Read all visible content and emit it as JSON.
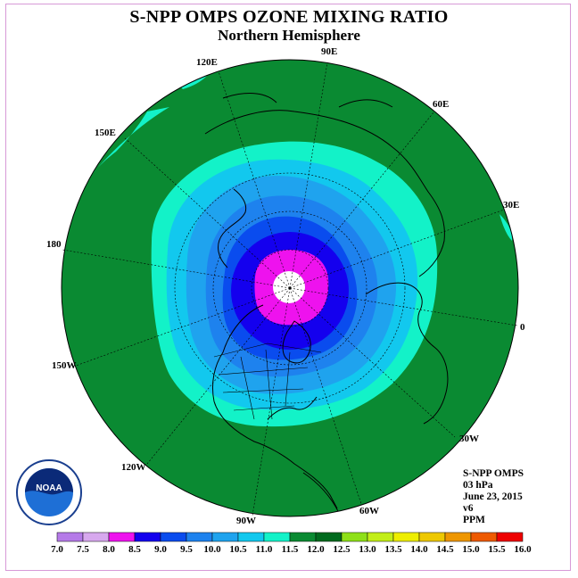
{
  "title": "S-NPP OMPS OZONE MIXING RATIO",
  "subtitle": "Northern Hemisphere",
  "longitude_labels": [
    "90E",
    "60E",
    "30E",
    "0",
    "30W",
    "60W",
    "90W",
    "120W",
    "150W",
    "180",
    "150E",
    "120E"
  ],
  "info": {
    "instrument": "S-NPP OMPS",
    "pressure": "03 hPa",
    "date": "June 23, 2015",
    "version": "v6",
    "units": "PPM"
  },
  "legend": {
    "ticks": [
      "7.0",
      "7.5",
      "8.0",
      "8.5",
      "9.0",
      "9.5",
      "10.0",
      "10.5",
      "11.0",
      "11.5",
      "12.0",
      "12.5",
      "13.0",
      "13.5",
      "14.0",
      "14.5",
      "15.0",
      "15.5",
      "16.0"
    ],
    "colors": [
      "#b57ae8",
      "#d7a8ee",
      "#ee12ee",
      "#1400ee",
      "#0a4cee",
      "#1e82ee",
      "#1fa3ee",
      "#12c8ee",
      "#13f2c8",
      "#0a8a32",
      "#006a1e",
      "#8ee018",
      "#c2ee18",
      "#eeee00",
      "#eec800",
      "#ee9600",
      "#ee5a00",
      "#ee0000",
      "#96502a"
    ]
  },
  "colors": {
    "frame": "#d79ad7",
    "ocean_ring": "#0a8a32",
    "land_line": "#000000"
  },
  "logo": {
    "text": "NOAA"
  }
}
